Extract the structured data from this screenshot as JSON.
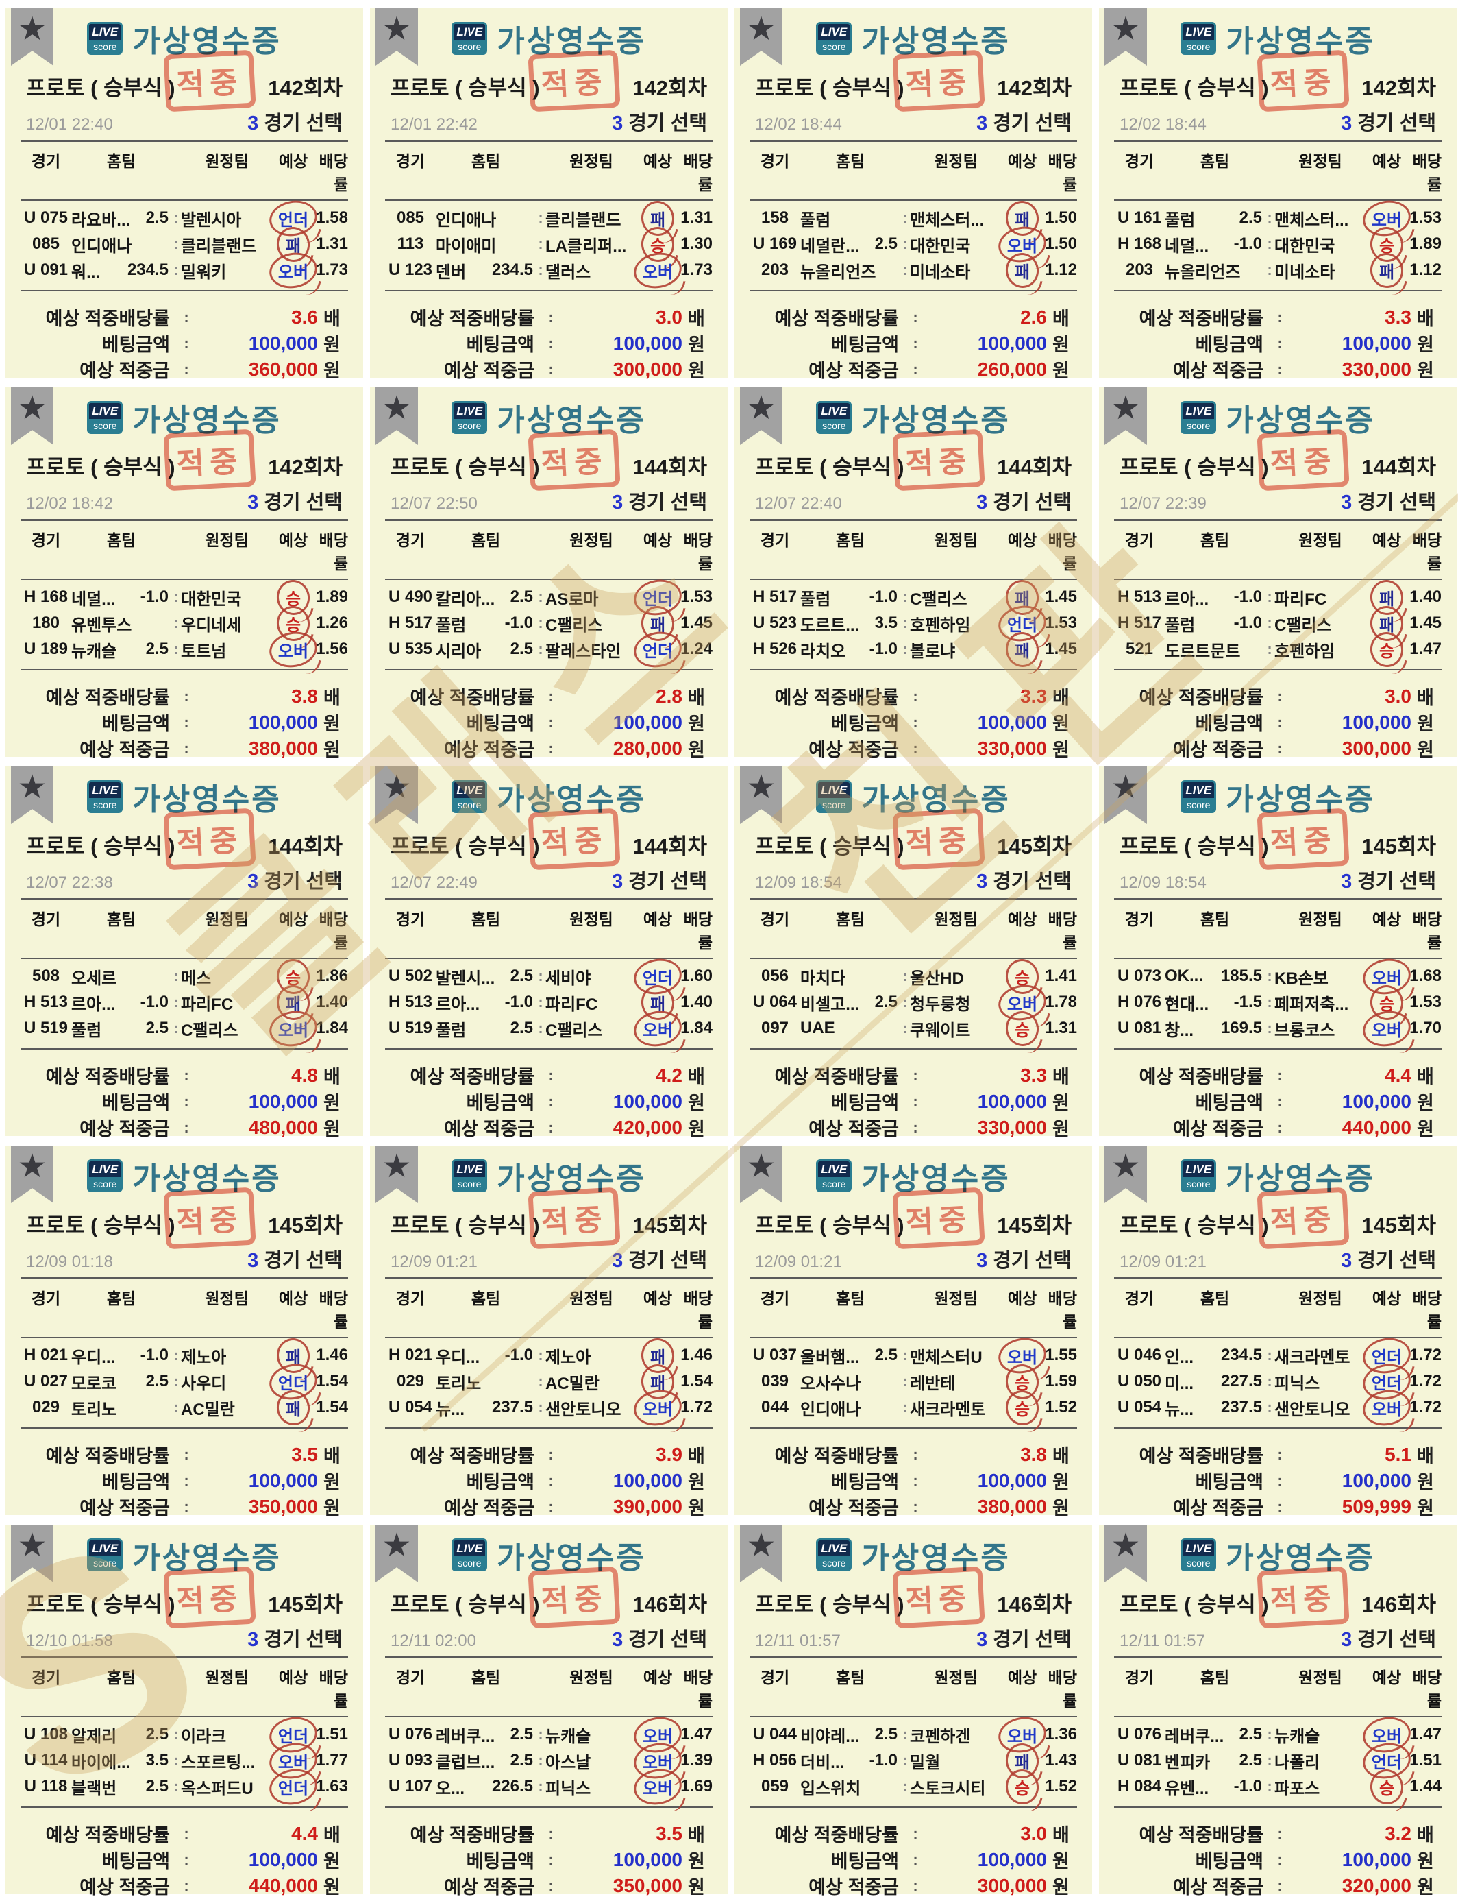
{
  "card_chrome": {
    "logo_top": "LIVE",
    "logo_bottom": "score",
    "title": "가상영수증",
    "product": "프로토 ( 승부식 )",
    "stamp": "적중",
    "games_count": "3",
    "games_count_suffix": "경기 선택",
    "headers": [
      "경기",
      "홈팀",
      "원정팀",
      "예상",
      "배당률"
    ],
    "separator": ":",
    "footer": {
      "rate_label": "예상 적중배당률",
      "bet_label": "베팅금액",
      "payout_label": "예상 적중금",
      "colon": ":",
      "rate_unit": "배",
      "currency_unit": "원"
    }
  },
  "badge_styles": {
    "승": "red",
    "패": "navy",
    "오버": "blue",
    "언더": "blue"
  },
  "colors": {
    "card_bg": "#f5f5d8",
    "title_teal": "#33758a",
    "stamp_red": "#e97e73",
    "value_red": "#cf1d1a",
    "value_blue": "#2430ca",
    "pick_win_red": "#c8231f",
    "pick_lose_navy": "#232a94",
    "pick_ou_blue": "#2038c8",
    "watermark_tan": "#c9a25e",
    "ribbon_gray": "#a2a2a2"
  },
  "watermark": {
    "fragments": [
      "클래스",
      "친판",
      "S"
    ]
  },
  "receipts": [
    {
      "round": "142회차",
      "datetime": "12/01  22:40",
      "rate": "3.6",
      "bet": "100,000",
      "payout": "360,000",
      "games": [
        {
          "code": "U 075",
          "home": "라요바...",
          "hcap": "2.5",
          "away": "발렌시아",
          "pick": "언더",
          "odds": "1.58"
        },
        {
          "code": "085",
          "home": "인디애나",
          "hcap": "",
          "away": "클리블랜드",
          "pick": "패",
          "odds": "1.31"
        },
        {
          "code": "U 091",
          "home": "워...",
          "hcap": "234.5",
          "away": "밀워키",
          "pick": "오버",
          "odds": "1.73"
        }
      ]
    },
    {
      "round": "142회차",
      "datetime": "12/01  22:42",
      "rate": "3.0",
      "bet": "100,000",
      "payout": "300,000",
      "games": [
        {
          "code": "085",
          "home": "인디애나",
          "hcap": "",
          "away": "클리블랜드",
          "pick": "패",
          "odds": "1.31"
        },
        {
          "code": "113",
          "home": "마이애미",
          "hcap": "",
          "away": "LA클리퍼...",
          "pick": "승",
          "odds": "1.30"
        },
        {
          "code": "U 123",
          "home": "덴버",
          "hcap": "234.5",
          "away": "댈러스",
          "pick": "오버",
          "odds": "1.73"
        }
      ]
    },
    {
      "round": "142회차",
      "datetime": "12/02  18:44",
      "rate": "2.6",
      "bet": "100,000",
      "payout": "260,000",
      "games": [
        {
          "code": "158",
          "home": "풀럼",
          "hcap": "",
          "away": "맨체스터...",
          "pick": "패",
          "odds": "1.50"
        },
        {
          "code": "U 169",
          "home": "네덜란...",
          "hcap": "2.5",
          "away": "대한민국",
          "pick": "오버",
          "odds": "1.50"
        },
        {
          "code": "203",
          "home": "뉴올리언즈",
          "hcap": "",
          "away": "미네소타",
          "pick": "패",
          "odds": "1.12"
        }
      ]
    },
    {
      "round": "142회차",
      "datetime": "12/02  18:44",
      "rate": "3.3",
      "bet": "100,000",
      "payout": "330,000",
      "games": [
        {
          "code": "U 161",
          "home": "풀럼",
          "hcap": "2.5",
          "away": "맨체스터...",
          "pick": "오버",
          "odds": "1.53"
        },
        {
          "code": "H 168",
          "home": "네덜...",
          "hcap": "-1.0",
          "away": "대한민국",
          "pick": "승",
          "odds": "1.89"
        },
        {
          "code": "203",
          "home": "뉴올리언즈",
          "hcap": "",
          "away": "미네소타",
          "pick": "패",
          "odds": "1.12"
        }
      ]
    },
    {
      "round": "142회차",
      "datetime": "12/02  18:42",
      "rate": "3.8",
      "bet": "100,000",
      "payout": "380,000",
      "games": [
        {
          "code": "H 168",
          "home": "네덜...",
          "hcap": "-1.0",
          "away": "대한민국",
          "pick": "승",
          "odds": "1.89"
        },
        {
          "code": "180",
          "home": "유벤투스",
          "hcap": "",
          "away": "우디네세",
          "pick": "승",
          "odds": "1.26"
        },
        {
          "code": "U 189",
          "home": "뉴캐슬",
          "hcap": "2.5",
          "away": "토트넘",
          "pick": "오버",
          "odds": "1.56"
        }
      ]
    },
    {
      "round": "144회차",
      "datetime": "12/07  22:50",
      "rate": "2.8",
      "bet": "100,000",
      "payout": "280,000",
      "games": [
        {
          "code": "U 490",
          "home": "칼리아...",
          "hcap": "2.5",
          "away": "AS로마",
          "pick": "언더",
          "odds": "1.53"
        },
        {
          "code": "H 517",
          "home": "풀럼",
          "hcap": "-1.0",
          "away": "C팰리스",
          "pick": "패",
          "odds": "1.45"
        },
        {
          "code": "U 535",
          "home": "시리아",
          "hcap": "2.5",
          "away": "팔레스타인",
          "pick": "언더",
          "odds": "1.24"
        }
      ]
    },
    {
      "round": "144회차",
      "datetime": "12/07  22:40",
      "rate": "3.3",
      "bet": "100,000",
      "payout": "330,000",
      "games": [
        {
          "code": "H 517",
          "home": "풀럼",
          "hcap": "-1.0",
          "away": "C팰리스",
          "pick": "패",
          "odds": "1.45"
        },
        {
          "code": "U 523",
          "home": "도르트...",
          "hcap": "3.5",
          "away": "호펜하임",
          "pick": "언더",
          "odds": "1.53"
        },
        {
          "code": "H 526",
          "home": "라치오",
          "hcap": "-1.0",
          "away": "볼로냐",
          "pick": "패",
          "odds": "1.45"
        }
      ]
    },
    {
      "round": "144회차",
      "datetime": "12/07  22:39",
      "rate": "3.0",
      "bet": "100,000",
      "payout": "300,000",
      "games": [
        {
          "code": "H 513",
          "home": "르아...",
          "hcap": "-1.0",
          "away": "파리FC",
          "pick": "패",
          "odds": "1.40"
        },
        {
          "code": "H 517",
          "home": "풀럼",
          "hcap": "-1.0",
          "away": "C팰리스",
          "pick": "패",
          "odds": "1.45"
        },
        {
          "code": "521",
          "home": "도르트문트",
          "hcap": "",
          "away": "호펜하임",
          "pick": "승",
          "odds": "1.47"
        }
      ]
    },
    {
      "round": "144회차",
      "datetime": "12/07  22:38",
      "rate": "4.8",
      "bet": "100,000",
      "payout": "480,000",
      "games": [
        {
          "code": "508",
          "home": "오세르",
          "hcap": "",
          "away": "메스",
          "pick": "승",
          "odds": "1.86"
        },
        {
          "code": "H 513",
          "home": "르아...",
          "hcap": "-1.0",
          "away": "파리FC",
          "pick": "패",
          "odds": "1.40"
        },
        {
          "code": "U 519",
          "home": "풀럼",
          "hcap": "2.5",
          "away": "C팰리스",
          "pick": "오버",
          "odds": "1.84"
        }
      ]
    },
    {
      "round": "144회차",
      "datetime": "12/07  22:49",
      "rate": "4.2",
      "bet": "100,000",
      "payout": "420,000",
      "games": [
        {
          "code": "U 502",
          "home": "발렌시...",
          "hcap": "2.5",
          "away": "세비야",
          "pick": "언더",
          "odds": "1.60"
        },
        {
          "code": "H 513",
          "home": "르아...",
          "hcap": "-1.0",
          "away": "파리FC",
          "pick": "패",
          "odds": "1.40"
        },
        {
          "code": "U 519",
          "home": "풀럼",
          "hcap": "2.5",
          "away": "C팰리스",
          "pick": "오버",
          "odds": "1.84"
        }
      ]
    },
    {
      "round": "145회차",
      "datetime": "12/09  18:54",
      "rate": "3.3",
      "bet": "100,000",
      "payout": "330,000",
      "games": [
        {
          "code": "056",
          "home": "마치다",
          "hcap": "",
          "away": "울산HD",
          "pick": "승",
          "odds": "1.41"
        },
        {
          "code": "U 064",
          "home": "비셀고...",
          "hcap": "2.5",
          "away": "청두룽청",
          "pick": "오버",
          "odds": "1.78"
        },
        {
          "code": "097",
          "home": "UAE",
          "hcap": "",
          "away": "쿠웨이트",
          "pick": "승",
          "odds": "1.31"
        }
      ]
    },
    {
      "round": "145회차",
      "datetime": "12/09  18:54",
      "rate": "4.4",
      "bet": "100,000",
      "payout": "440,000",
      "games": [
        {
          "code": "U 073",
          "home": "OK...",
          "hcap": "185.5",
          "away": "KB손보",
          "pick": "오버",
          "odds": "1.68"
        },
        {
          "code": "H 076",
          "home": "현대...",
          "hcap": "-1.5",
          "away": "페퍼저축...",
          "pick": "승",
          "odds": "1.53"
        },
        {
          "code": "U 081",
          "home": "창...",
          "hcap": "169.5",
          "away": "브롱코스",
          "pick": "오버",
          "odds": "1.70"
        }
      ]
    },
    {
      "round": "145회차",
      "datetime": "12/09  01:18",
      "rate": "3.5",
      "bet": "100,000",
      "payout": "350,000",
      "games": [
        {
          "code": "H 021",
          "home": "우디...",
          "hcap": "-1.0",
          "away": "제노아",
          "pick": "패",
          "odds": "1.46"
        },
        {
          "code": "U 027",
          "home": "모로코",
          "hcap": "2.5",
          "away": "사우디",
          "pick": "언더",
          "odds": "1.54"
        },
        {
          "code": "029",
          "home": "토리노",
          "hcap": "",
          "away": "AC밀란",
          "pick": "패",
          "odds": "1.54"
        }
      ]
    },
    {
      "round": "145회차",
      "datetime": "12/09  01:21",
      "rate": "3.9",
      "bet": "100,000",
      "payout": "390,000",
      "games": [
        {
          "code": "H 021",
          "home": "우디...",
          "hcap": "-1.0",
          "away": "제노아",
          "pick": "패",
          "odds": "1.46"
        },
        {
          "code": "029",
          "home": "토리노",
          "hcap": "",
          "away": "AC밀란",
          "pick": "패",
          "odds": "1.54"
        },
        {
          "code": "U 054",
          "home": "뉴...",
          "hcap": "237.5",
          "away": "샌안토니오",
          "pick": "오버",
          "odds": "1.72"
        }
      ]
    },
    {
      "round": "145회차",
      "datetime": "12/09  01:21",
      "rate": "3.8",
      "bet": "100,000",
      "payout": "380,000",
      "games": [
        {
          "code": "U 037",
          "home": "울버햄...",
          "hcap": "2.5",
          "away": "맨체스터U",
          "pick": "오버",
          "odds": "1.55"
        },
        {
          "code": "039",
          "home": "오사수나",
          "hcap": "",
          "away": "레반테",
          "pick": "승",
          "odds": "1.59"
        },
        {
          "code": "044",
          "home": "인디애나",
          "hcap": "",
          "away": "새크라멘토",
          "pick": "승",
          "odds": "1.52"
        }
      ]
    },
    {
      "round": "145회차",
      "datetime": "12/09  01:21",
      "rate": "5.1",
      "bet": "100,000",
      "payout": "509,999",
      "games": [
        {
          "code": "U 046",
          "home": "인...",
          "hcap": "234.5",
          "away": "새크라멘토",
          "pick": "언더",
          "odds": "1.72"
        },
        {
          "code": "U 050",
          "home": "미...",
          "hcap": "227.5",
          "away": "피닉스",
          "pick": "언더",
          "odds": "1.72"
        },
        {
          "code": "U 054",
          "home": "뉴...",
          "hcap": "237.5",
          "away": "샌안토니오",
          "pick": "오버",
          "odds": "1.72"
        }
      ]
    },
    {
      "round": "145회차",
      "datetime": "12/10  01:58",
      "rate": "4.4",
      "bet": "100,000",
      "payout": "440,000",
      "games": [
        {
          "code": "U 108",
          "home": "알제리",
          "hcap": "2.5",
          "away": "이라크",
          "pick": "언더",
          "odds": "1.51"
        },
        {
          "code": "U 114",
          "home": "바이에...",
          "hcap": "3.5",
          "away": "스포르팅...",
          "pick": "오버",
          "odds": "1.77"
        },
        {
          "code": "U 118",
          "home": "블랙번",
          "hcap": "2.5",
          "away": "옥스퍼드U",
          "pick": "언더",
          "odds": "1.63"
        }
      ]
    },
    {
      "round": "146회차",
      "datetime": "12/11  02:00",
      "rate": "3.5",
      "bet": "100,000",
      "payout": "350,000",
      "games": [
        {
          "code": "U 076",
          "home": "레버쿠...",
          "hcap": "2.5",
          "away": "뉴캐슬",
          "pick": "오버",
          "odds": "1.47"
        },
        {
          "code": "U 093",
          "home": "클럽브...",
          "hcap": "2.5",
          "away": "아스날",
          "pick": "오버",
          "odds": "1.39"
        },
        {
          "code": "U 107",
          "home": "오...",
          "hcap": "226.5",
          "away": "피닉스",
          "pick": "오버",
          "odds": "1.69"
        }
      ]
    },
    {
      "round": "146회차",
      "datetime": "12/11  01:57",
      "rate": "3.0",
      "bet": "100,000",
      "payout": "300,000",
      "games": [
        {
          "code": "U 044",
          "home": "비야레...",
          "hcap": "2.5",
          "away": "코펜하겐",
          "pick": "오버",
          "odds": "1.36"
        },
        {
          "code": "H 056",
          "home": "더비...",
          "hcap": "-1.0",
          "away": "밀월",
          "pick": "패",
          "odds": "1.43"
        },
        {
          "code": "059",
          "home": "입스위치",
          "hcap": "",
          "away": "스토크시티",
          "pick": "승",
          "odds": "1.52"
        }
      ]
    },
    {
      "round": "146회차",
      "datetime": "12/11  01:57",
      "rate": "3.2",
      "bet": "100,000",
      "payout": "320,000",
      "games": [
        {
          "code": "U 076",
          "home": "레버쿠...",
          "hcap": "2.5",
          "away": "뉴캐슬",
          "pick": "오버",
          "odds": "1.47"
        },
        {
          "code": "U 081",
          "home": "벤피카",
          "hcap": "2.5",
          "away": "나폴리",
          "pick": "언더",
          "odds": "1.51"
        },
        {
          "code": "H 084",
          "home": "유벤...",
          "hcap": "-1.0",
          "away": "파포스",
          "pick": "승",
          "odds": "1.44"
        }
      ]
    }
  ]
}
